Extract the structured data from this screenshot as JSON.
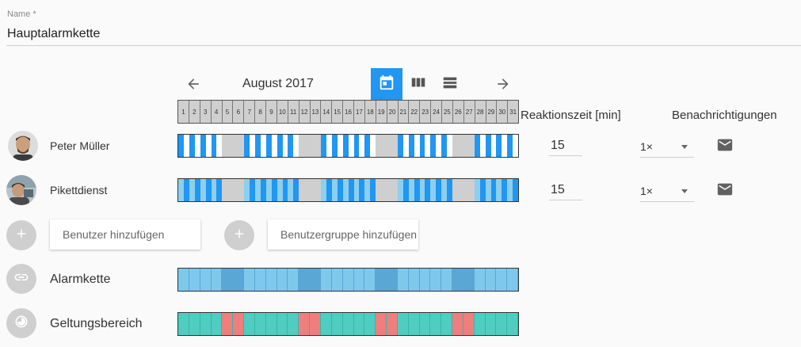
{
  "name_field": {
    "label": "Name *",
    "value": "Hauptalarmkette"
  },
  "calendar": {
    "month": "August 2017",
    "days": [
      "1",
      "2",
      "3",
      "4",
      "5",
      "6",
      "7",
      "8",
      "9",
      "10",
      "11",
      "12",
      "13",
      "14",
      "15",
      "16",
      "17",
      "18",
      "19",
      "20",
      "21",
      "22",
      "23",
      "24",
      "25",
      "26",
      "27",
      "28",
      "29",
      "30",
      "31"
    ],
    "prev_icon": "arrow-left-icon",
    "next_icon": "arrow-right-icon",
    "views": [
      "calendar-day-icon",
      "view-week-icon",
      "view-list-icon"
    ],
    "accent_color": "#2196f3"
  },
  "headers": {
    "reaction_time": "Reaktionszeit [min]",
    "notifications": "Benachrichtigungen"
  },
  "members": [
    {
      "name": "Peter Müller",
      "reaction": "15",
      "repeat": "1×",
      "notify_icon": "mail-icon"
    },
    {
      "name": "Pikettdienst",
      "reaction": "15",
      "repeat": "1×",
      "notify_icon": "mail-icon"
    }
  ],
  "add": {
    "user_placeholder": "Benutzer hinzufügen",
    "group_placeholder": "Benutzergruppe hinzufügen"
  },
  "summary": {
    "chain_label": "Alarmkette",
    "scope_label": "Geltungsbereich"
  },
  "colors": {
    "off": "#cfcfcf",
    "on_blue": "#2196f3",
    "on_light": "#8ccfee",
    "on_light_dark": "#6aaed6",
    "chain": "#7ec8ec",
    "chain_dark": "#5aa6d4",
    "scope": "#4ecdc0",
    "scope_off": "#ef7e7e"
  }
}
